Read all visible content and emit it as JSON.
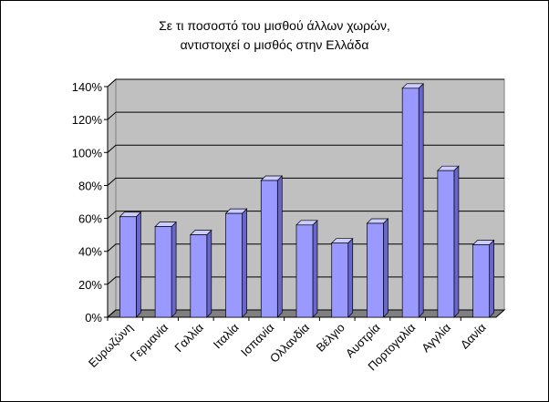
{
  "chart_data": {
    "type": "bar",
    "title": [
      "Σε τι ποσοστό του μισθού άλλων χωρών,",
      "αντιστοιχεί ο μισθός στην Ελλάδα"
    ],
    "categories": [
      "Ευρωζώνη",
      "Γερμανία",
      "Γαλλία",
      "Ιταλία",
      "Ισπανία",
      "Ολλανδία",
      "Βέλγιο",
      "Αυστρία",
      "Πορτογαλία",
      "Αγγλία",
      "Δανία"
    ],
    "values": [
      61,
      55,
      50,
      63,
      83,
      56,
      45,
      57,
      139,
      89,
      44
    ],
    "color": "#9999ff",
    "ylim": [
      0,
      140
    ],
    "yticks": [
      {
        "value": 0,
        "label": "0%"
      },
      {
        "value": 20,
        "label": "20%"
      },
      {
        "value": 40,
        "label": "40%"
      },
      {
        "value": 60,
        "label": "60%"
      },
      {
        "value": 80,
        "label": "80%"
      },
      {
        "value": 100,
        "label": "100%"
      },
      {
        "value": 120,
        "label": "120%"
      },
      {
        "value": 140,
        "label": "140%"
      }
    ],
    "grid": true
  }
}
